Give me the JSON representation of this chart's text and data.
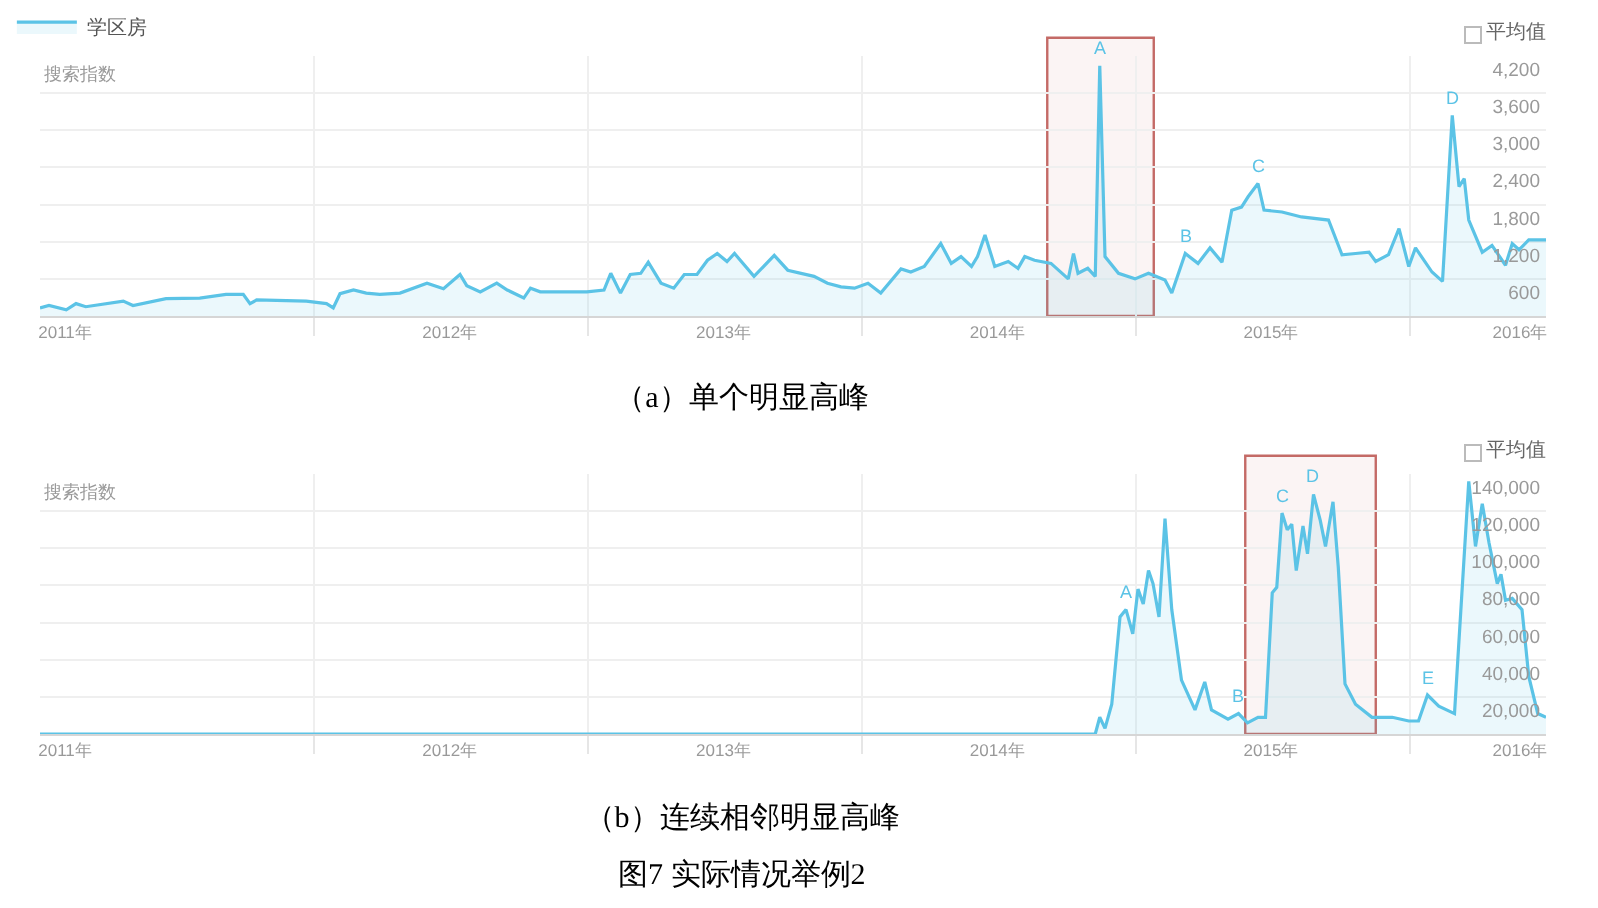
{
  "chart_data": [
    {
      "type": "area",
      "title": "（a）单个明显高峰",
      "ylabel": "搜索指数",
      "x": [
        "2011-01-01",
        "2011-01-13",
        "2011-02-05",
        "2011-02-18",
        "2011-03-03",
        "2011-04-22",
        "2011-05-05",
        "2011-06-18",
        "2011-08-02",
        "2011-09-06",
        "2011-09-29",
        "2011-10-08",
        "2011-10-17",
        "2011-12-22",
        "2012-01-18",
        "2012-01-27",
        "2012-02-05",
        "2012-02-23",
        "2012-03-11",
        "2012-03-29",
        "2012-04-25",
        "2012-05-31",
        "2012-06-22",
        "2012-07-14",
        "2012-07-23",
        "2012-08-10",
        "2012-09-01",
        "2012-09-15",
        "2012-10-07",
        "2012-10-16",
        "2012-10-29",
        "2012-12-30",
        "2013-01-22",
        "2013-01-31",
        "2013-02-13",
        "2013-02-26",
        "2013-03-12",
        "2013-03-22",
        "2013-04-08",
        "2013-04-25",
        "2013-05-09",
        "2013-05-26",
        "2013-06-09",
        "2013-06-22",
        "2013-07-05",
        "2013-07-15",
        "2013-08-10",
        "2013-09-06",
        "2013-09-24",
        "2013-10-29",
        "2013-11-16",
        "2013-12-04",
        "2013-12-22",
        "2014-01-09",
        "2014-01-26",
        "2014-02-22",
        "2014-03-07",
        "2014-03-25",
        "2014-04-16",
        "2014-04-30",
        "2014-05-13",
        "2014-05-27",
        "2014-06-04",
        "2014-06-14",
        "2014-06-27",
        "2014-07-15",
        "2014-07-28",
        "2014-08-06",
        "2014-08-19",
        "2014-09-10",
        "2014-10-03",
        "2014-10-10",
        "2014-10-16",
        "2014-10-29",
        "2014-11-08",
        "2014-11-14",
        "2014-11-21",
        "2014-12-09",
        "2014-12-31",
        "2015-01-18",
        "2015-02-09",
        "2015-02-18",
        "2015-03-08",
        "2015-03-25",
        "2015-04-10",
        "2015-04-26",
        "2015-05-09",
        "2015-05-22",
        "2015-05-31",
        "2015-06-13",
        "2015-06-21",
        "2015-07-15",
        "2015-08-10",
        "2015-09-15",
        "2015-10-03",
        "2015-10-21",
        "2015-11-08",
        "2015-11-17",
        "2015-12-04",
        "2015-12-18",
        "2015-12-31",
        "2016-01-09",
        "2016-01-31",
        "2016-02-14",
        "2016-02-27",
        "2016-03-07",
        "2016-03-14",
        "2016-03-20",
        "2016-04-07",
        "2016-04-20",
        "2016-05-08",
        "2016-05-17",
        "2016-05-26",
        "2016-06-08",
        "2016-07-01"
      ],
      "series": [
        {
          "name": "学区房",
          "color": "#5bc3e6",
          "values": [
            130,
            170,
            100,
            200,
            150,
            240,
            170,
            280,
            290,
            350,
            350,
            200,
            260,
            240,
            200,
            130,
            360,
            420,
            370,
            350,
            370,
            530,
            440,
            670,
            490,
            390,
            530,
            420,
            290,
            450,
            390,
            390,
            420,
            690,
            370,
            670,
            690,
            870,
            530,
            450,
            670,
            670,
            900,
            1010,
            880,
            1010,
            640,
            980,
            740,
            640,
            530,
            470,
            450,
            530,
            370,
            760,
            710,
            800,
            1170,
            850,
            960,
            800,
            960,
            1310,
            800,
            880,
            770,
            960,
            900,
            850,
            600,
            1010,
            690,
            770,
            640,
            4040,
            960,
            690,
            600,
            690,
            580,
            370,
            1010,
            850,
            1100,
            870,
            1710,
            1760,
            1930,
            2140,
            1710,
            1680,
            1600,
            1550,
            990,
            1010,
            1030,
            880,
            990,
            1410,
            800,
            1100,
            710,
            560,
            3240,
            2090,
            2220,
            1550,
            1030,
            1140,
            820,
            1170,
            1070,
            1230,
            1230
          ]
        }
      ],
      "xlim": [
        "2011-01-01",
        "2016-07-01"
      ],
      "xticks": [
        {
          "value": "2011-02-04",
          "label": "2011年"
        },
        {
          "value": "2012-01-01",
          "label": null
        },
        {
          "value": "2012-07-01",
          "label": "2012年"
        },
        {
          "value": "2013-01-01",
          "label": null
        },
        {
          "value": "2013-07-01",
          "label": "2013年"
        },
        {
          "value": "2014-01-01",
          "label": null
        },
        {
          "value": "2014-07-01",
          "label": "2014年"
        },
        {
          "value": "2015-01-01",
          "label": null
        },
        {
          "value": "2015-07-01",
          "label": "2015年"
        },
        {
          "value": "2016-01-01",
          "label": null
        },
        {
          "value": "2016-05-28",
          "label": "2016年"
        }
      ],
      "ylim": [
        0,
        4200
      ],
      "yticks": [
        {
          "value": 0,
          "label": null
        },
        600,
        {
          "value": 1200,
          "label": "1,200"
        },
        {
          "value": 1800,
          "label": "1,800"
        },
        {
          "value": 2400,
          "label": "2,400"
        },
        {
          "value": 3000,
          "label": "3,000"
        },
        {
          "value": 3600,
          "label": "3,600"
        },
        {
          "value": 4200,
          "label": "4,200"
        }
      ],
      "grid": true,
      "legend": "top left",
      "annotations": [
        "平均值",
        {
          "text": "A",
          "x": "2014-11-14",
          "y": 4040
        },
        {
          "text": "B",
          "x": "2015-03-08",
          "y": 1010
        },
        {
          "text": "C",
          "x": "2015-06-13",
          "y": 2140
        },
        {
          "text": "D",
          "x": "2016-02-27",
          "y": 3240
        }
      ],
      "bands": [
        {
          "axis": "x",
          "from": "2014-09-05",
          "to": "2015-01-25",
          "color": "#c46a66"
        }
      ]
    },
    {
      "type": "area",
      "title": "（b）连续相邻明显高峰",
      "subtitle": "图7 实际情况举例2",
      "ylabel": "搜索指数",
      "x": [
        "2011-01-01",
        "2014-11-08",
        "2014-11-14",
        "2014-11-21",
        "2014-11-30",
        "2014-12-11",
        "2014-12-19",
        "2014-12-28",
        "2015-01-04",
        "2015-01-11",
        "2015-01-18",
        "2015-01-24",
        "2015-02-01",
        "2015-02-09",
        "2015-02-18",
        "2015-03-03",
        "2015-03-21",
        "2015-04-03",
        "2015-04-12",
        "2015-05-04",
        "2015-05-18",
        "2015-05-30",
        "2015-06-13",
        "2015-06-23",
        "2015-07-02",
        "2015-07-08",
        "2015-07-15",
        "2015-07-22",
        "2015-07-28",
        "2015-08-03",
        "2015-08-12",
        "2015-08-18",
        "2015-08-26",
        "2015-09-04",
        "2015-09-11",
        "2015-09-21",
        "2015-09-28",
        "2015-10-07",
        "2015-10-21",
        "2015-11-12",
        "2015-12-09",
        "2015-12-31",
        "2016-01-13",
        "2016-01-25",
        "2016-02-09",
        "2016-03-01",
        "2016-03-20",
        "2016-03-29",
        "2016-04-07",
        "2016-04-16",
        "2016-04-27",
        "2016-05-02",
        "2016-05-08",
        "2016-05-17",
        "2016-05-30",
        "2016-06-08",
        "2016-06-20",
        "2016-07-01"
      ],
      "series": [
        {
          "color": "#5bc3e6",
          "values": [
            0,
            0,
            9000,
            3000,
            16000,
            63000,
            67000,
            54000,
            78000,
            70000,
            88000,
            81000,
            63000,
            116000,
            67000,
            29000,
            13000,
            28000,
            13000,
            8000,
            11000,
            6000,
            9000,
            9000,
            76000,
            79000,
            119000,
            110000,
            113000,
            88000,
            112000,
            97000,
            129000,
            115000,
            101000,
            125000,
            90000,
            27000,
            16000,
            9000,
            9000,
            7000,
            7000,
            21000,
            15000,
            11000,
            136000,
            101000,
            124000,
            103000,
            81000,
            86000,
            72000,
            73000,
            67000,
            31000,
            11000,
            9000
          ]
        }
      ],
      "xlim": [
        "2011-01-01",
        "2016-07-01"
      ],
      "xticks": [
        {
          "value": "2011-02-04",
          "label": "2011年"
        },
        {
          "value": "2012-01-01",
          "label": null
        },
        {
          "value": "2012-07-01",
          "label": "2012年"
        },
        {
          "value": "2013-01-01",
          "label": null
        },
        {
          "value": "2013-07-01",
          "label": "2013年"
        },
        {
          "value": "2014-01-01",
          "label": null
        },
        {
          "value": "2014-07-01",
          "label": "2014年"
        },
        {
          "value": "2015-01-01",
          "label": null
        },
        {
          "value": "2015-07-01",
          "label": "2015年"
        },
        {
          "value": "2016-01-01",
          "label": null
        },
        {
          "value": "2016-05-28",
          "label": "2016年"
        }
      ],
      "ylim": [
        0,
        140000
      ],
      "yticks": [
        {
          "value": 0,
          "label": null
        },
        {
          "value": 20000,
          "label": "20,000"
        },
        {
          "value": 40000,
          "label": "40,000"
        },
        {
          "value": 60000,
          "label": "60,000"
        },
        {
          "value": 80000,
          "label": "80,000"
        },
        {
          "value": 100000,
          "label": "100,000"
        },
        {
          "value": 120000,
          "label": "120,000"
        },
        {
          "value": 140000,
          "label": "140,000"
        }
      ],
      "grid": true,
      "annotations": [
        "平均值",
        {
          "text": "A",
          "x": "2014-12-19",
          "y": 67000
        },
        {
          "text": "B",
          "x": "2015-05-18",
          "y": 11000
        },
        {
          "text": "C",
          "x": "2015-07-15",
          "y": 119000
        },
        {
          "text": "D",
          "x": "2015-08-26",
          "y": 129000
        },
        {
          "text": "E",
          "x": "2016-01-25",
          "y": 21000
        }
      ],
      "bands": [
        {
          "axis": "x",
          "from": "2015-05-27",
          "to": "2015-11-17",
          "color": "#c46a66"
        }
      ]
    }
  ]
}
